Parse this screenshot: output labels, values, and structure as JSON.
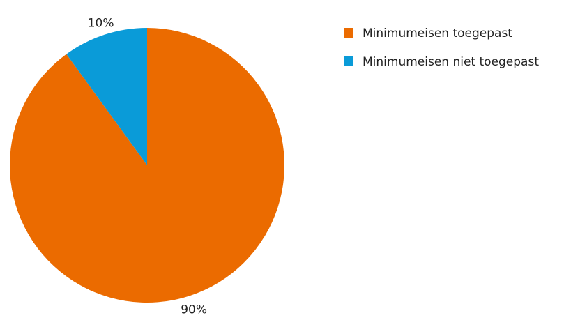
{
  "chart_data": {
    "type": "pie",
    "title": "",
    "slices": [
      {
        "label": "Minimumeisen toegepast",
        "value": 90,
        "display": "90%",
        "color": "#EB6B00"
      },
      {
        "label": "Minimumeisen niet toegepast",
        "value": 10,
        "display": "10%",
        "color": "#0A9BD8"
      }
    ],
    "legend": {
      "placement": "top-right",
      "entries": [
        "Minimumeisen toegepast",
        "Minimumeisen niet toegepast"
      ]
    },
    "start_angle": "12 o'clock",
    "direction": "counterclockwise"
  }
}
